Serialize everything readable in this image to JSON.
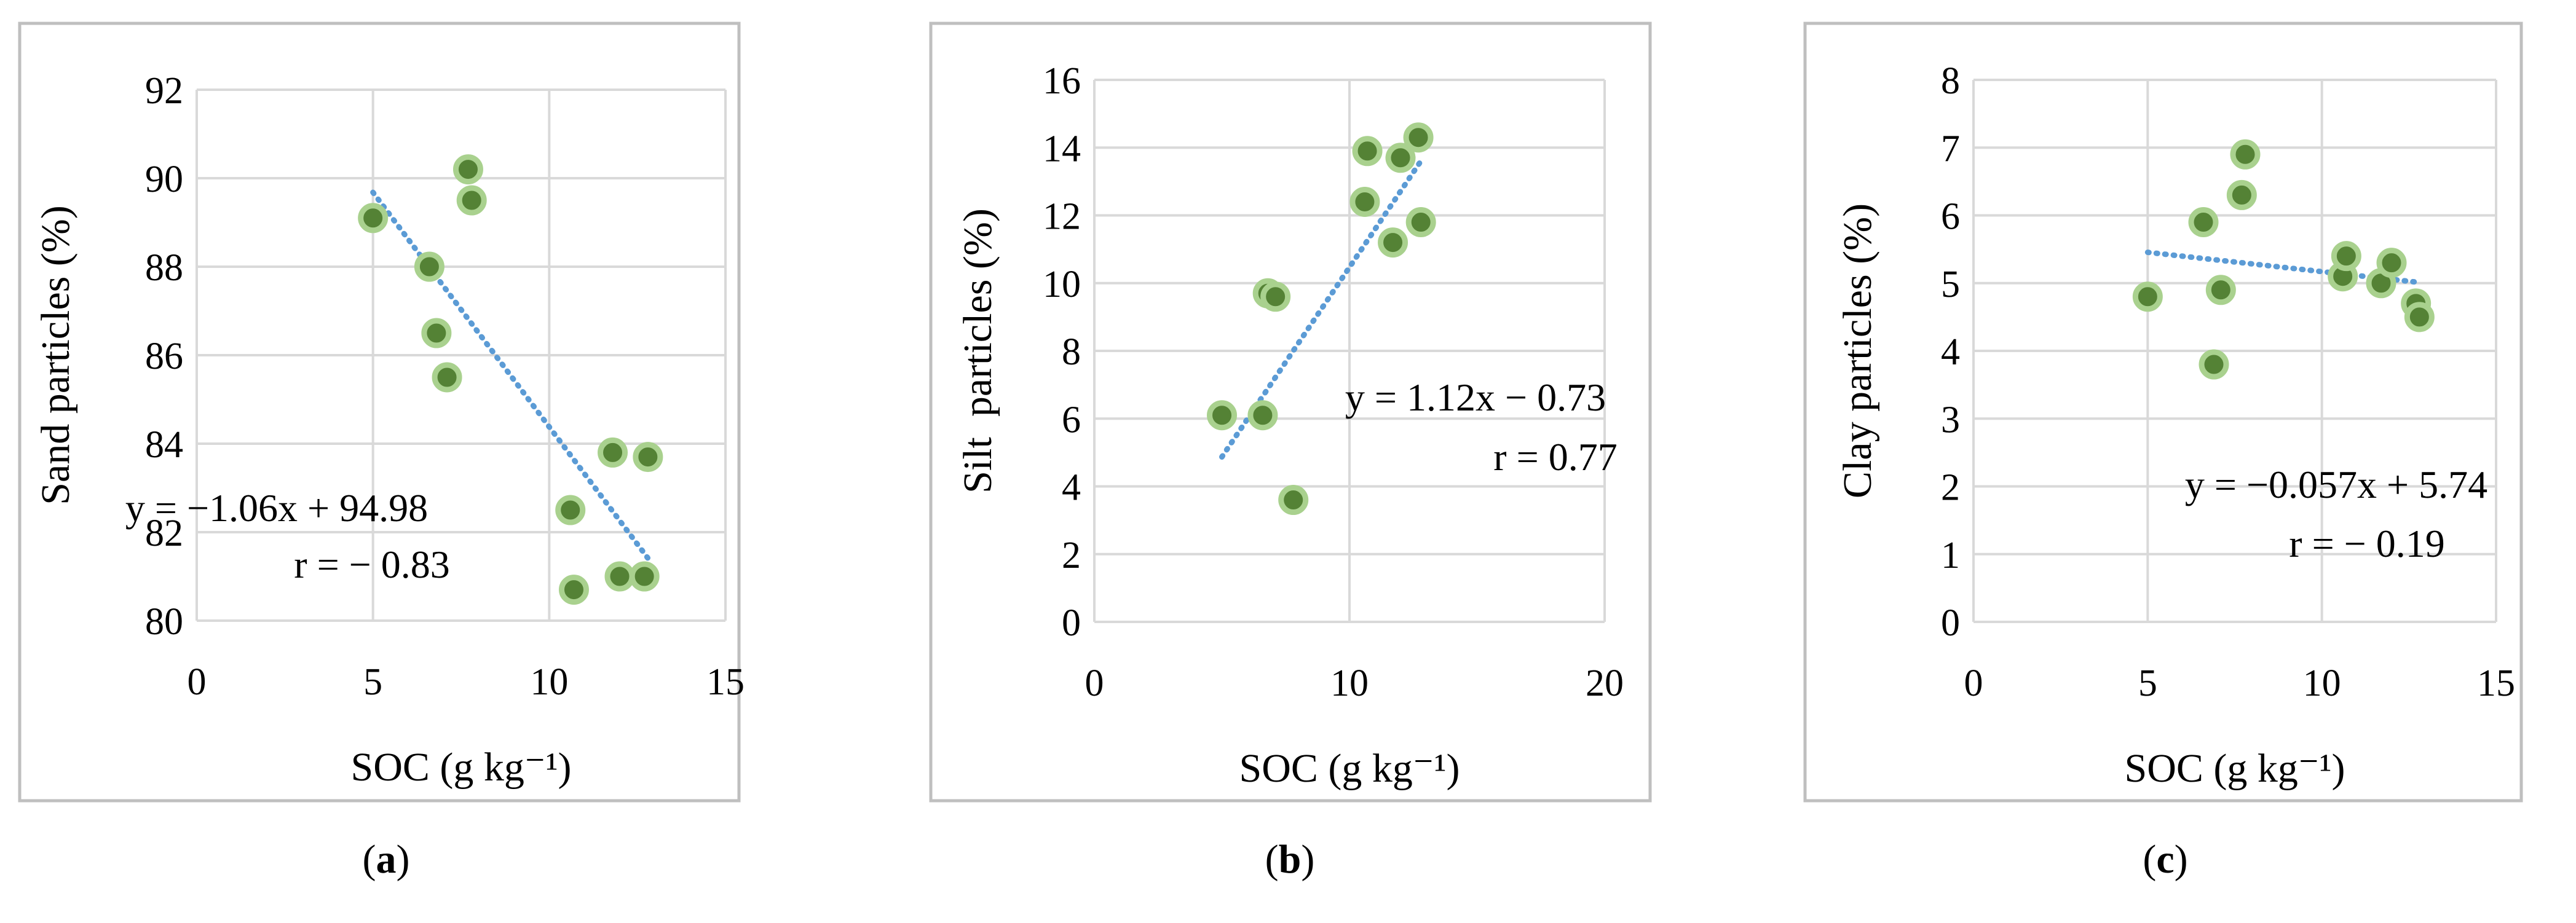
{
  "chart_data": [
    {
      "type": "scatter",
      "panel_label": "a",
      "xlabel": "SOC (g  kg⁻¹)",
      "ylabel": "Sand particles (%)",
      "xlim": [
        0,
        15
      ],
      "ylim": [
        80,
        92
      ],
      "x_ticks": [
        0,
        5,
        10,
        15
      ],
      "y_ticks": [
        80,
        82,
        84,
        86,
        88,
        90,
        92
      ],
      "grid": true,
      "points": [
        {
          "x": 5.0,
          "y": 89.1
        },
        {
          "x": 6.6,
          "y": 88.0
        },
        {
          "x": 6.8,
          "y": 86.5
        },
        {
          "x": 7.1,
          "y": 85.5
        },
        {
          "x": 7.7,
          "y": 90.2
        },
        {
          "x": 7.8,
          "y": 89.5
        },
        {
          "x": 10.6,
          "y": 82.5
        },
        {
          "x": 10.7,
          "y": 80.7
        },
        {
          "x": 11.8,
          "y": 83.8
        },
        {
          "x": 12.0,
          "y": 81.0
        },
        {
          "x": 12.7,
          "y": 81.0
        },
        {
          "x": 12.8,
          "y": 83.7
        }
      ],
      "trendline": {
        "x0": 5.0,
        "x1": 12.8,
        "slope": -1.06,
        "intercept": 94.98
      },
      "equation": "y = −1.06x + 94.98",
      "r_text": "r = − 0.83"
    },
    {
      "type": "scatter",
      "panel_label": "b",
      "xlabel": "SOC (g kg⁻¹)",
      "ylabel": "Silt  particles (%)",
      "xlim": [
        0,
        20
      ],
      "ylim": [
        0,
        16
      ],
      "x_ticks": [
        0,
        10,
        20
      ],
      "y_ticks": [
        0,
        2,
        4,
        6,
        8,
        10,
        12,
        14,
        16
      ],
      "grid": true,
      "points": [
        {
          "x": 5.0,
          "y": 6.1
        },
        {
          "x": 6.6,
          "y": 6.1
        },
        {
          "x": 6.8,
          "y": 9.7
        },
        {
          "x": 7.1,
          "y": 9.6
        },
        {
          "x": 7.8,
          "y": 3.6
        },
        {
          "x": 10.6,
          "y": 12.4
        },
        {
          "x": 10.7,
          "y": 13.9
        },
        {
          "x": 11.7,
          "y": 11.2
        },
        {
          "x": 12.0,
          "y": 13.7
        },
        {
          "x": 12.7,
          "y": 14.3
        },
        {
          "x": 12.8,
          "y": 11.8
        }
      ],
      "trendline": {
        "x0": 5.0,
        "x1": 12.8,
        "slope": 1.12,
        "intercept": -0.73
      },
      "equation": "y = 1.12x − 0.73",
      "r_text": "r = 0.77"
    },
    {
      "type": "scatter",
      "panel_label": "c",
      "xlabel": "SOC (g kg⁻¹)",
      "ylabel": "Clay particles (%)",
      "xlim": [
        0,
        15
      ],
      "ylim": [
        0,
        8
      ],
      "x_ticks": [
        0,
        5,
        10,
        15
      ],
      "y_ticks": [
        0,
        1,
        2,
        3,
        4,
        5,
        6,
        7,
        8
      ],
      "grid": true,
      "points": [
        {
          "x": 5.0,
          "y": 4.8
        },
        {
          "x": 6.6,
          "y": 5.9
        },
        {
          "x": 6.9,
          "y": 3.8
        },
        {
          "x": 7.1,
          "y": 4.9
        },
        {
          "x": 7.7,
          "y": 6.3
        },
        {
          "x": 7.8,
          "y": 6.9
        },
        {
          "x": 10.6,
          "y": 5.1
        },
        {
          "x": 10.7,
          "y": 5.4
        },
        {
          "x": 11.7,
          "y": 5.0
        },
        {
          "x": 12.0,
          "y": 5.3
        },
        {
          "x": 12.7,
          "y": 4.7
        },
        {
          "x": 12.8,
          "y": 4.5
        }
      ],
      "trendline": {
        "x0": 5.0,
        "x1": 12.8,
        "slope": -0.057,
        "intercept": 5.74
      },
      "equation": "y = −0.057x + 5.74",
      "r_text": "r = − 0.19"
    }
  ],
  "colors": {
    "marker_fill": "#548235",
    "marker_edge": "#a9d18e",
    "trendline": "#5b9bd5",
    "grid": "#d9d9d9",
    "frame": "#bfbfbf",
    "text": "#000000"
  }
}
